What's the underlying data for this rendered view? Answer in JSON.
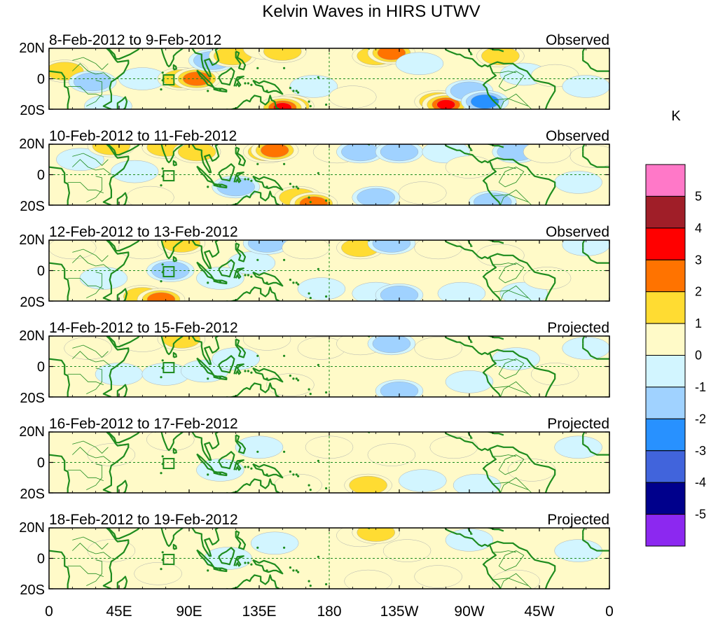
{
  "title": "Kelvin Waves in HIRS UTWV",
  "colorbar": {
    "unit": "K",
    "labels": [
      "5",
      "4",
      "3",
      "2",
      "1",
      "0",
      "-1",
      "-2",
      "-3",
      "-4",
      "-5"
    ],
    "colors": [
      "#ff78c8",
      "#a01e28",
      "#ff0000",
      "#ff7300",
      "#ffdc32",
      "#fffac8",
      "#d2f5ff",
      "#a0d2ff",
      "#2891ff",
      "#4164dc",
      "#00008c",
      "#8c28f0"
    ]
  },
  "lat_labels": [
    "20N",
    "0",
    "20S"
  ],
  "lon_labels": [
    "0",
    "45E",
    "90E",
    "135E",
    "180",
    "135W",
    "90W",
    "45W",
    "0"
  ],
  "panels": [
    {
      "date": "8-Feb-2012 to 9-Feb-2012",
      "status": "Observed"
    },
    {
      "date": "10-Feb-2012 to 11-Feb-2012",
      "status": "Observed"
    },
    {
      "date": "12-Feb-2012 to 13-Feb-2012",
      "status": "Observed"
    },
    {
      "date": "14-Feb-2012 to 15-Feb-2012",
      "status": "Projected"
    },
    {
      "date": "16-Feb-2012 to 17-Feb-2012",
      "status": "Projected"
    },
    {
      "date": "18-Feb-2012 to 19-Feb-2012",
      "status": "Projected"
    }
  ],
  "anomalies": [
    [
      [
        [
          10,
          5
        ],
        [
          2
        ]
      ],
      [
        [
          28,
          -2
        ],
        [
          -2
        ]
      ],
      [
        [
          38,
          -18
        ],
        [
          -1
        ]
      ],
      [
        [
          60,
          0
        ],
        [
          -1
        ]
      ],
      [
        [
          85,
          0
        ],
        [
          2
        ]
      ],
      [
        [
          95,
          0
        ],
        [
          3
        ]
      ],
      [
        [
          105,
          12
        ],
        [
          -2
        ]
      ],
      [
        [
          118,
          15
        ],
        [
          2
        ]
      ],
      [
        [
          140,
          20
        ],
        [
          1
        ]
      ],
      [
        [
          150,
          18
        ],
        [
          2
        ]
      ],
      [
        [
          155,
          -18
        ],
        [
          2
        ]
      ],
      [
        [
          150,
          -19
        ],
        [
          4
        ]
      ],
      [
        [
          170,
          -5
        ],
        [
          -1
        ]
      ],
      [
        [
          195,
          -12
        ],
        [
          1
        ]
      ],
      [
        [
          210,
          15
        ],
        [
          2
        ]
      ],
      [
        [
          220,
          17
        ],
        [
          3
        ]
      ],
      [
        [
          238,
          10
        ],
        [
          -1
        ]
      ],
      [
        [
          250,
          -15
        ],
        [
          2
        ]
      ],
      [
        [
          255,
          -17
        ],
        [
          4
        ]
      ],
      [
        [
          270,
          -8
        ],
        [
          -2
        ]
      ],
      [
        [
          280,
          -15
        ],
        [
          -3
        ]
      ],
      [
        [
          290,
          15
        ],
        [
          2
        ]
      ],
      [
        [
          305,
          3
        ],
        [
          -1
        ]
      ],
      [
        [
          325,
          2
        ],
        [
          1
        ]
      ],
      [
        [
          345,
          -5
        ],
        [
          -1
        ]
      ]
    ],
    [
      [
        [
          20,
          10
        ],
        [
          -1
        ]
      ],
      [
        [
          40,
          19
        ],
        [
          2
        ]
      ],
      [
        [
          55,
          2
        ],
        [
          -1
        ]
      ],
      [
        [
          65,
          -15
        ],
        [
          1
        ]
      ],
      [
        [
          75,
          18
        ],
        [
          2
        ]
      ],
      [
        [
          95,
          15
        ],
        [
          2
        ]
      ],
      [
        [
          120,
          -8
        ],
        [
          -2
        ]
      ],
      [
        [
          140,
          15
        ],
        [
          2
        ]
      ],
      [
        [
          145,
          16
        ],
        [
          3
        ]
      ],
      [
        [
          160,
          -15
        ],
        [
          2
        ]
      ],
      [
        [
          170,
          -19
        ],
        [
          3
        ]
      ],
      [
        [
          185,
          15
        ],
        [
          1
        ]
      ],
      [
        [
          200,
          15
        ],
        [
          -2
        ]
      ],
      [
        [
          210,
          -15
        ],
        [
          -2
        ]
      ],
      [
        [
          225,
          15
        ],
        [
          -2
        ]
      ],
      [
        [
          240,
          -12
        ],
        [
          1
        ]
      ],
      [
        [
          255,
          15
        ],
        [
          -1
        ]
      ],
      [
        [
          270,
          5
        ],
        [
          1
        ]
      ],
      [
        [
          285,
          -18
        ],
        [
          -2
        ]
      ],
      [
        [
          300,
          15
        ],
        [
          -2
        ]
      ],
      [
        [
          320,
          15
        ],
        [
          1
        ]
      ],
      [
        [
          340,
          -5
        ],
        [
          -1
        ]
      ],
      [
        [
          350,
          12
        ],
        [
          1
        ]
      ]
    ],
    [
      [
        [
          15,
          15
        ],
        [
          1
        ]
      ],
      [
        [
          35,
          -5
        ],
        [
          -1
        ]
      ],
      [
        [
          60,
          -17
        ],
        [
          2
        ]
      ],
      [
        [
          72,
          -19
        ],
        [
          3
        ]
      ],
      [
        [
          78,
          0
        ],
        [
          -2
        ]
      ],
      [
        [
          60,
          15
        ],
        [
          1
        ]
      ],
      [
        [
          85,
          18
        ],
        [
          2
        ]
      ],
      [
        [
          110,
          -5
        ],
        [
          -1
        ]
      ],
      [
        [
          130,
          5
        ],
        [
          -1
        ]
      ],
      [
        [
          140,
          18
        ],
        [
          -2
        ]
      ],
      [
        [
          165,
          15
        ],
        [
          1
        ]
      ],
      [
        [
          175,
          -12
        ],
        [
          -1
        ]
      ],
      [
        [
          200,
          15
        ],
        [
          2
        ]
      ],
      [
        [
          210,
          -15
        ],
        [
          -1
        ]
      ],
      [
        [
          220,
          18
        ],
        [
          -2
        ]
      ],
      [
        [
          225,
          -16
        ],
        [
          -2
        ]
      ],
      [
        [
          250,
          15
        ],
        [
          1
        ]
      ],
      [
        [
          265,
          -15
        ],
        [
          -1
        ]
      ],
      [
        [
          290,
          10
        ],
        [
          1
        ]
      ],
      [
        [
          305,
          -15
        ],
        [
          -1
        ]
      ],
      [
        [
          320,
          -5
        ],
        [
          1
        ]
      ],
      [
        [
          345,
          17
        ],
        [
          -1
        ]
      ]
    ],
    [
      [
        [
          25,
          12
        ],
        [
          1
        ]
      ],
      [
        [
          45,
          -5
        ],
        [
          -1
        ]
      ],
      [
        [
          60,
          17
        ],
        [
          1
        ]
      ],
      [
        [
          75,
          -5
        ],
        [
          -1
        ]
      ],
      [
        [
          85,
          18
        ],
        [
          2
        ]
      ],
      [
        [
          100,
          -3
        ],
        [
          -1
        ]
      ],
      [
        [
          120,
          5
        ],
        [
          -1
        ]
      ],
      [
        [
          140,
          18
        ],
        [
          1
        ]
      ],
      [
        [
          155,
          -12
        ],
        [
          1
        ]
      ],
      [
        [
          175,
          12
        ],
        [
          1
        ]
      ],
      [
        [
          200,
          15
        ],
        [
          1
        ]
      ],
      [
        [
          220,
          15
        ],
        [
          -2
        ]
      ],
      [
        [
          225,
          -16
        ],
        [
          -2
        ]
      ],
      [
        [
          250,
          12
        ],
        [
          1
        ]
      ],
      [
        [
          270,
          -10
        ],
        [
          -1
        ]
      ],
      [
        [
          300,
          5
        ],
        [
          -1
        ]
      ],
      [
        [
          325,
          -5
        ],
        [
          1
        ]
      ],
      [
        [
          345,
          12
        ],
        [
          -1
        ]
      ]
    ],
    [
      [
        [
          40,
          5
        ],
        [
          1
        ]
      ],
      [
        [
          78,
          15
        ],
        [
          1
        ]
      ],
      [
        [
          110,
          -5
        ],
        [
          -1
        ]
      ],
      [
        [
          135,
          10
        ],
        [
          -1
        ]
      ],
      [
        [
          160,
          -15
        ],
        [
          1
        ]
      ],
      [
        [
          180,
          10
        ],
        [
          1
        ]
      ],
      [
        [
          205,
          -15
        ],
        [
          2
        ]
      ],
      [
        [
          220,
          5
        ],
        [
          1
        ]
      ],
      [
        [
          240,
          -12
        ],
        [
          -1
        ]
      ],
      [
        [
          260,
          10
        ],
        [
          1
        ]
      ],
      [
        [
          275,
          -15
        ],
        [
          -1
        ]
      ],
      [
        [
          310,
          -5
        ],
        [
          1
        ]
      ],
      [
        [
          340,
          10
        ],
        [
          -1
        ]
      ]
    ],
    [
      [
        [
          40,
          5
        ],
        [
          1
        ]
      ],
      [
        [
          70,
          -10
        ],
        [
          1
        ]
      ],
      [
        [
          115,
          0
        ],
        [
          -1
        ]
      ],
      [
        [
          145,
          10
        ],
        [
          -1
        ]
      ],
      [
        [
          200,
          15
        ],
        [
          1
        ]
      ],
      [
        [
          205,
          -15
        ],
        [
          1
        ]
      ],
      [
        [
          210,
          17
        ],
        [
          2
        ]
      ],
      [
        [
          230,
          5
        ],
        [
          1
        ]
      ],
      [
        [
          250,
          -12
        ],
        [
          1
        ]
      ],
      [
        [
          270,
          12
        ],
        [
          -1
        ]
      ],
      [
        [
          300,
          -15
        ],
        [
          1
        ]
      ],
      [
        [
          340,
          5
        ],
        [
          -1
        ]
      ]
    ]
  ]
}
